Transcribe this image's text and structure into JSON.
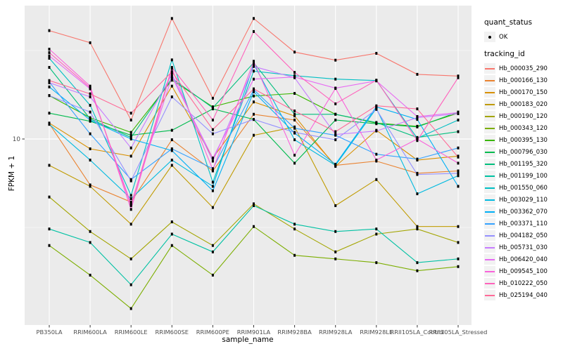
{
  "figure": {
    "background": "#FFFFFF",
    "panel_background": "#EBEBEB",
    "gridline_color": "#FFFFFF",
    "point_color": "#000000",
    "tick_label_color": "#4D4D4D"
  },
  "axes": {
    "x": {
      "label": "sample_name"
    },
    "y": {
      "label": "FPKM + 1",
      "scale": "log10",
      "tick_labels": [
        "10"
      ]
    }
  },
  "legend": {
    "quant_status_title": "quant_status",
    "quant_status_items": [
      {
        "label": "OK",
        "symbol": "point",
        "color": "#000000"
      }
    ],
    "tracking_id_title": "tracking_id"
  },
  "chart_data": {
    "type": "line",
    "title": "",
    "xlabel": "sample_name",
    "ylabel": "FPKM + 1",
    "y_scale": "log10",
    "y_axis_break_shown": 10,
    "legend_position": "right",
    "grid": "on",
    "quant_status": "OK",
    "x_categories": [
      "PB350LA",
      "RRIM600LA",
      "RRIM600LE",
      "RRIM600SE",
      "RRIM600PE",
      "RRIM901LA",
      "RRIM928BA",
      "RRIM928LA",
      "RRIM928LE",
      "RRII105LA_Control",
      "RRII105LA_Stressed"
    ],
    "series": [
      {
        "name": "Hb_000035_290",
        "color": "#F8766D",
        "values": [
          41.0,
          35.0,
          12.8,
          48.0,
          17.0,
          48.0,
          31.0,
          27.9,
          30.5,
          23.2,
          22.7
        ]
      },
      {
        "name": "Hb_000166_130",
        "color": "#EA8331",
        "values": [
          12.2,
          5.5,
          4.4,
          9.9,
          6.6,
          13.8,
          12.8,
          7.1,
          7.5,
          6.4,
          6.6
        ]
      },
      {
        "name": "Hb_000170_150",
        "color": "#D89000",
        "values": [
          12.3,
          8.8,
          8.0,
          19.9,
          7.8,
          16.2,
          13.5,
          7.0,
          11.2,
          7.6,
          8.0
        ]
      },
      {
        "name": "Hb_000183_020",
        "color": "#C09B00",
        "values": [
          7.1,
          5.4,
          3.3,
          7.1,
          4.1,
          10.5,
          11.7,
          4.2,
          5.9,
          3.2,
          3.2
        ]
      },
      {
        "name": "Hb_000190_120",
        "color": "#A3A500",
        "values": [
          4.7,
          3.0,
          2.1,
          3.4,
          2.5,
          4.3,
          3.1,
          2.3,
          2.9,
          3.1,
          2.6
        ]
      },
      {
        "name": "Hb_000343_120",
        "color": "#7CAE00",
        "values": [
          2.5,
          1.7,
          1.1,
          2.5,
          1.7,
          3.2,
          2.2,
          2.1,
          2.0,
          1.8,
          1.9
        ]
      },
      {
        "name": "Hb_000395_130",
        "color": "#39B600",
        "values": [
          17.6,
          13.2,
          10.9,
          21.5,
          15.2,
          17.5,
          18.1,
          13.8,
          12.3,
          11.8,
          14.0
        ]
      },
      {
        "name": "Hb_000796_030",
        "color": "#00BB4E",
        "values": [
          14.0,
          12.6,
          10.5,
          11.2,
          14.8,
          12.9,
          7.3,
          12.8,
          12.2,
          11.7,
          14.2
        ]
      },
      {
        "name": "Hb_001195_320",
        "color": "#00BF7D",
        "values": [
          25.4,
          13.0,
          10.2,
          22.0,
          15.0,
          27.0,
          13.8,
          13.8,
          12.4,
          10.2,
          11.0
        ]
      },
      {
        "name": "Hb_001199_100",
        "color": "#00C1A3",
        "values": [
          3.1,
          2.6,
          1.5,
          2.9,
          2.3,
          4.2,
          3.3,
          3.0,
          3.1,
          2.0,
          2.1
        ]
      },
      {
        "name": "Hb_001550_060",
        "color": "#00BFC4",
        "values": [
          28.6,
          15.5,
          4.8,
          28.0,
          5.7,
          24.2,
          22.8,
          21.8,
          21.4,
          10.1,
          12.8
        ]
      },
      {
        "name": "Hb_003029_110",
        "color": "#00BAE0",
        "values": [
          12.1,
          7.6,
          4.6,
          7.6,
          5.4,
          26.5,
          9.9,
          7.1,
          14.9,
          4.9,
          6.2
        ]
      },
      {
        "name": "Hb_003362_070",
        "color": "#00B0F6",
        "values": [
          19.7,
          12.8,
          10.0,
          8.6,
          5.1,
          18.5,
          10.8,
          7.2,
          15.2,
          12.9,
          5.4
        ]
      },
      {
        "name": "Hb_003371_110",
        "color": "#35A2FF",
        "values": [
          21.0,
          10.7,
          5.9,
          8.8,
          6.8,
          19.0,
          11.5,
          10.5,
          8.2,
          7.7,
          8.9
        ]
      },
      {
        "name": "Hb_004182_050",
        "color": "#9590FF",
        "values": [
          17.6,
          14.2,
          5.8,
          17.3,
          10.7,
          12.9,
          10.9,
          9.9,
          14.7,
          6.3,
          6.4
        ]
      },
      {
        "name": "Hb_005731_030",
        "color": "#C77CFF",
        "values": [
          20.8,
          17.3,
          8.9,
          23.2,
          7.5,
          25.7,
          22.2,
          10.6,
          11.1,
          13.2,
          13.9
        ]
      },
      {
        "name": "Hb_006420_040",
        "color": "#E76BF3",
        "values": [
          29.5,
          19.2,
          4.3,
          22.5,
          7.8,
          21.8,
          22.4,
          19.4,
          21.3,
          13.4,
          14.1
        ]
      },
      {
        "name": "Hb_009545_100",
        "color": "#FA62DB",
        "values": [
          32.2,
          19.9,
          4.0,
          25.0,
          6.7,
          27.5,
          8.1,
          19.3,
          7.6,
          10.0,
          7.3
        ]
      },
      {
        "name": "Hb_010222_050",
        "color": "#FF62BC",
        "values": [
          30.8,
          19.5,
          4.2,
          25.4,
          12.8,
          40.5,
          23.8,
          15.8,
          21.5,
          9.8,
          22.2
        ]
      },
      {
        "name": "Hb_025194_040",
        "color": "#FF6A98",
        "values": [
          21.4,
          18.0,
          14.0,
          24.0,
          11.3,
          19.2,
          14.4,
          11.0,
          15.4,
          14.8,
          7.9
        ]
      }
    ]
  }
}
